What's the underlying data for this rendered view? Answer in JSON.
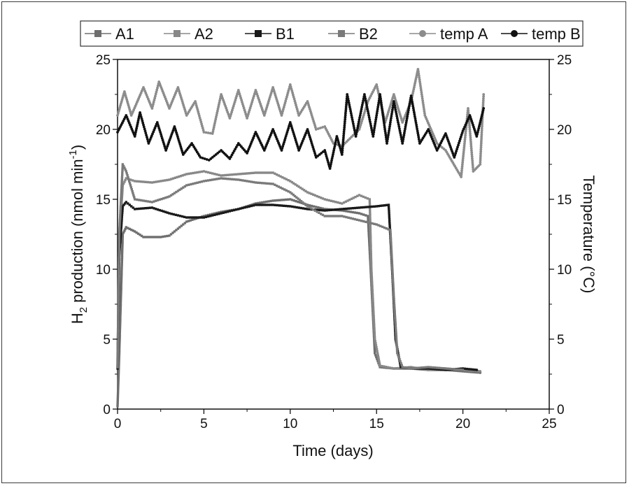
{
  "chart_data": {
    "type": "line",
    "xlabel": "Time (days)",
    "ylabel_left": {
      "base": "H",
      "sub": "2",
      "mid": " production (nmol min",
      "sup": "-1",
      "end": ")"
    },
    "ylabel_right": "Temperature (°C)",
    "xlim": [
      0,
      25
    ],
    "ylim_left": [
      0,
      25
    ],
    "ylim_right": [
      0,
      25
    ],
    "x_ticks": [
      "0",
      "5",
      "10",
      "15",
      "20",
      "25"
    ],
    "y_ticks_left": [
      "0",
      "5",
      "10",
      "15",
      "20",
      "25"
    ],
    "y_ticks_right": [
      "0",
      "5",
      "10",
      "15",
      "20",
      "25"
    ],
    "grid": false,
    "legend_position": "top",
    "series": [
      {
        "name": "A1",
        "axis": "left",
        "marker": "square",
        "color": "#6e6e6e",
        "x": [
          0.0,
          0.1,
          0.3,
          0.5,
          1.0,
          1.5,
          2.0,
          2.5,
          3.0,
          3.5,
          4.0,
          5.0,
          6.0,
          7.0,
          8.0,
          9.0,
          10.0,
          11.0,
          12.0,
          13.0,
          14.0,
          14.5,
          14.7,
          14.9,
          15.2,
          16.0,
          17.0,
          18.0,
          19.0,
          20.0,
          21.0
        ],
        "y": [
          0.2,
          4.0,
          12.5,
          13.0,
          12.7,
          12.3,
          12.3,
          12.3,
          12.4,
          12.9,
          13.4,
          13.8,
          14.1,
          14.3,
          14.7,
          14.9,
          15.0,
          14.6,
          14.3,
          14.2,
          14.0,
          13.8,
          9.0,
          4.0,
          3.0,
          2.9,
          2.9,
          2.8,
          2.8,
          2.7,
          2.6
        ]
      },
      {
        "name": "A2",
        "axis": "left",
        "marker": "square",
        "color": "#888888",
        "x": [
          0.0,
          0.1,
          0.3,
          0.5,
          1.0,
          2.0,
          3.0,
          4.0,
          5.0,
          6.0,
          7.0,
          8.0,
          9.0,
          10.0,
          11.0,
          12.0,
          13.0,
          14.0,
          14.6,
          14.7,
          14.9,
          15.2,
          16.0,
          17.0,
          18.0,
          19.0,
          20.0,
          21.0
        ],
        "y": [
          3.5,
          12.0,
          16.0,
          16.5,
          16.3,
          16.2,
          16.4,
          16.8,
          17.0,
          16.7,
          16.8,
          16.9,
          16.9,
          16.3,
          15.5,
          15.0,
          14.7,
          15.3,
          15.0,
          10.0,
          5.0,
          3.1,
          2.9,
          3.0,
          2.8,
          2.9,
          2.8,
          2.7
        ]
      },
      {
        "name": "B1",
        "axis": "left",
        "marker": "square",
        "color": "#1a1a1a",
        "x": [
          0.0,
          0.1,
          0.3,
          0.5,
          1.0,
          2.0,
          3.0,
          4.0,
          5.0,
          6.0,
          7.0,
          8.0,
          9.0,
          10.0,
          11.0,
          12.0,
          13.0,
          14.0,
          15.0,
          15.7,
          15.9,
          16.1,
          16.4,
          17.0,
          18.0,
          19.0,
          20.0,
          20.8
        ],
        "y": [
          2.9,
          11.0,
          14.5,
          14.8,
          14.3,
          14.4,
          14.0,
          13.7,
          13.7,
          14.0,
          14.3,
          14.6,
          14.6,
          14.5,
          14.3,
          14.2,
          14.3,
          14.4,
          14.5,
          14.6,
          10.0,
          5.0,
          3.0,
          2.9,
          2.9,
          2.8,
          2.9,
          2.8
        ]
      },
      {
        "name": "B2",
        "axis": "left",
        "marker": "square",
        "color": "#7a7a7a",
        "x": [
          0.0,
          0.1,
          0.3,
          0.5,
          1.0,
          2.0,
          3.0,
          4.0,
          5.0,
          6.0,
          7.0,
          8.0,
          9.0,
          10.0,
          11.0,
          12.0,
          13.0,
          14.0,
          15.0,
          15.8,
          16.0,
          16.2,
          16.5,
          17.0,
          18.0,
          19.0,
          20.0
        ],
        "y": [
          3.0,
          12.5,
          17.5,
          17.0,
          15.0,
          14.8,
          15.2,
          16.0,
          16.3,
          16.5,
          16.4,
          16.2,
          16.1,
          15.5,
          14.5,
          13.8,
          13.8,
          13.5,
          13.2,
          12.8,
          8.0,
          4.0,
          3.0,
          2.9,
          3.0,
          2.9,
          2.8
        ]
      },
      {
        "name": "temp A",
        "axis": "right",
        "marker": "circle",
        "color": "#8c8c8c",
        "x": [
          0.0,
          0.4,
          0.8,
          1.5,
          2.0,
          2.4,
          3.0,
          3.5,
          4.0,
          4.5,
          5.0,
          5.5,
          6.0,
          6.5,
          7.0,
          7.5,
          8.0,
          8.5,
          9.0,
          9.5,
          10.0,
          10.5,
          11.0,
          11.5,
          12.0,
          12.5,
          13.0,
          14.0,
          14.5,
          15.0,
          15.5,
          16.0,
          16.5,
          17.0,
          17.4,
          17.8,
          18.5,
          19.0,
          19.9,
          20.3,
          20.6,
          21.0,
          21.2
        ],
        "y": [
          21.0,
          22.7,
          21.0,
          23.0,
          21.5,
          23.4,
          21.5,
          23.0,
          21.0,
          22.0,
          19.8,
          19.7,
          22.5,
          20.8,
          22.8,
          20.8,
          22.8,
          21.0,
          23.0,
          21.0,
          23.2,
          21.0,
          22.0,
          20.0,
          20.2,
          19.0,
          18.8,
          20.0,
          22.0,
          23.2,
          20.5,
          22.5,
          20.5,
          22.0,
          24.3,
          21.0,
          19.0,
          18.5,
          16.6,
          21.5,
          17.0,
          17.5,
          22.5
        ]
      },
      {
        "name": "temp B",
        "axis": "right",
        "marker": "circle",
        "color": "#111111",
        "x": [
          0.0,
          0.5,
          1.0,
          1.3,
          1.8,
          2.3,
          2.8,
          3.3,
          3.8,
          4.3,
          4.8,
          5.3,
          6.0,
          6.5,
          7.0,
          7.5,
          8.0,
          8.5,
          9.0,
          9.5,
          10.0,
          10.5,
          11.0,
          11.5,
          12.0,
          12.3,
          12.7,
          13.0,
          13.3,
          13.8,
          14.3,
          14.8,
          15.2,
          15.6,
          16.0,
          16.5,
          17.0,
          17.5,
          18.0,
          18.5,
          19.0,
          19.5,
          20.0,
          20.4,
          20.8,
          21.2
        ],
        "y": [
          19.8,
          21.0,
          19.5,
          21.2,
          19.0,
          20.5,
          18.5,
          20.2,
          18.2,
          19.0,
          18.0,
          17.8,
          18.5,
          17.9,
          19.0,
          18.3,
          19.8,
          18.5,
          20.0,
          18.5,
          20.5,
          18.5,
          20.0,
          18.0,
          18.5,
          17.2,
          19.5,
          18.2,
          22.5,
          19.5,
          22.5,
          19.5,
          22.5,
          19.0,
          22.0,
          19.0,
          22.4,
          19.0,
          20.0,
          18.5,
          19.7,
          18.0,
          19.9,
          21.0,
          19.5,
          21.5
        ]
      }
    ]
  }
}
